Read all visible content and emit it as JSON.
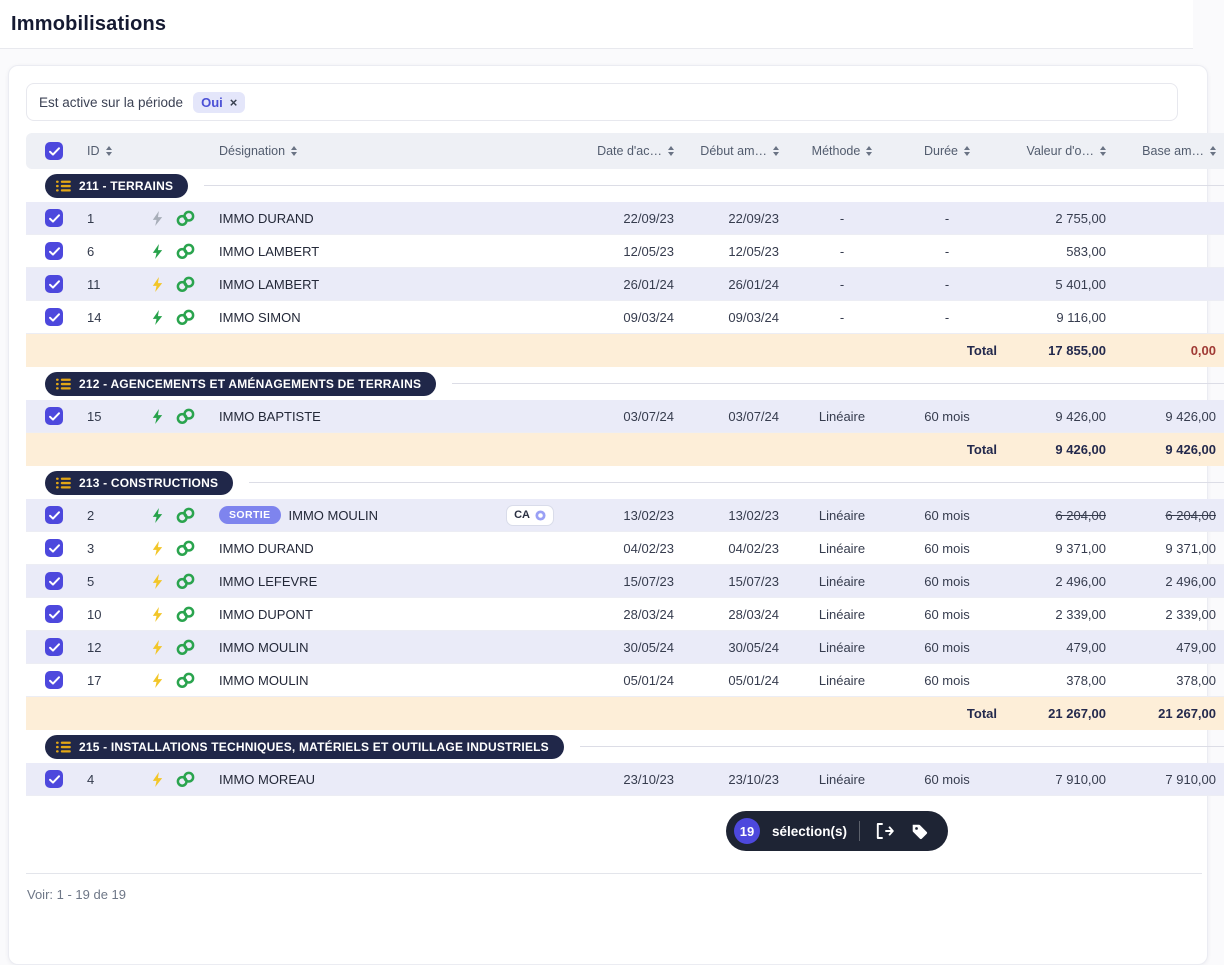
{
  "colors": {
    "accent": "#4d48dd",
    "row_alt": "#eaebf8",
    "total_bg": "#fdeed8",
    "group_pill_bg": "#202749",
    "selection_bg": "#1e2434",
    "bolt_green": "#27a24b",
    "bolt_yellow": "#f2c629",
    "bolt_gray": "#a8aeb9",
    "link_green": "#2aa44e",
    "badge_sortie_bg": "#7e84ee",
    "chip_bg": "#e4e6fa",
    "chip_text": "#4b50d6",
    "negative_total": "#a03a35",
    "list_icon": "#e3a716",
    "donut_ring": "#9aa0f5"
  },
  "header": {
    "title": "Immobilisations"
  },
  "filter": {
    "label": "Est active sur la période",
    "value": "Oui",
    "remove": "×"
  },
  "table": {
    "columns": [
      "ID",
      "Désignation",
      "Date d'ac…",
      "Début am…",
      "Méthode",
      "Durée",
      "Valeur d'o…",
      "Base am…"
    ]
  },
  "groups": [
    {
      "label": "211 - TERRAINS",
      "rows": [
        {
          "id": "1",
          "bolt": "gray",
          "linked": true,
          "badge": null,
          "name": "IMMO DURAND",
          "tag": null,
          "date_acq": "22/09/23",
          "date_debut": "22/09/23",
          "methode": "-",
          "duree": "-",
          "valeur": "2 755,00",
          "base": "",
          "struck": false
        },
        {
          "id": "6",
          "bolt": "green",
          "linked": true,
          "badge": null,
          "name": "IMMO LAMBERT",
          "tag": null,
          "date_acq": "12/05/23",
          "date_debut": "12/05/23",
          "methode": "-",
          "duree": "-",
          "valeur": "583,00",
          "base": "",
          "struck": false
        },
        {
          "id": "11",
          "bolt": "yellow",
          "linked": true,
          "badge": null,
          "name": "IMMO LAMBERT",
          "tag": null,
          "date_acq": "26/01/24",
          "date_debut": "26/01/24",
          "methode": "-",
          "duree": "-",
          "valeur": "5 401,00",
          "base": "",
          "struck": false
        },
        {
          "id": "14",
          "bolt": "green",
          "linked": true,
          "badge": null,
          "name": "IMMO SIMON",
          "tag": null,
          "date_acq": "09/03/24",
          "date_debut": "09/03/24",
          "methode": "-",
          "duree": "-",
          "valeur": "9 116,00",
          "base": "",
          "struck": false
        }
      ],
      "total": {
        "label": "Total",
        "valeur": "17 855,00",
        "base": "0,00",
        "base_negative": true
      }
    },
    {
      "label": "212 - AGENCEMENTS ET AMÉNAGEMENTS DE TERRAINS",
      "rows": [
        {
          "id": "15",
          "bolt": "green",
          "linked": true,
          "badge": null,
          "name": "IMMO BAPTISTE",
          "tag": null,
          "date_acq": "03/07/24",
          "date_debut": "03/07/24",
          "methode": "Linéaire",
          "duree": "60 mois",
          "valeur": "9 426,00",
          "base": "9 426,00",
          "struck": false
        }
      ],
      "total": {
        "label": "Total",
        "valeur": "9 426,00",
        "base": "9 426,00",
        "base_negative": false
      }
    },
    {
      "label": "213 - CONSTRUCTIONS",
      "rows": [
        {
          "id": "2",
          "bolt": "green",
          "linked": true,
          "badge": "SORTIE",
          "name": "IMMO MOULIN",
          "tag": "CA",
          "date_acq": "13/02/23",
          "date_debut": "13/02/23",
          "methode": "Linéaire",
          "duree": "60 mois",
          "valeur": "6 204,00",
          "base": "6 204,00",
          "struck": true
        },
        {
          "id": "3",
          "bolt": "yellow",
          "linked": true,
          "badge": null,
          "name": "IMMO DURAND",
          "tag": null,
          "date_acq": "04/02/23",
          "date_debut": "04/02/23",
          "methode": "Linéaire",
          "duree": "60 mois",
          "valeur": "9 371,00",
          "base": "9 371,00",
          "struck": false
        },
        {
          "id": "5",
          "bolt": "yellow",
          "linked": true,
          "badge": null,
          "name": "IMMO LEFEVRE",
          "tag": null,
          "date_acq": "15/07/23",
          "date_debut": "15/07/23",
          "methode": "Linéaire",
          "duree": "60 mois",
          "valeur": "2 496,00",
          "base": "2 496,00",
          "struck": false
        },
        {
          "id": "10",
          "bolt": "yellow",
          "linked": true,
          "badge": null,
          "name": "IMMO DUPONT",
          "tag": null,
          "date_acq": "28/03/24",
          "date_debut": "28/03/24",
          "methode": "Linéaire",
          "duree": "60 mois",
          "valeur": "2 339,00",
          "base": "2 339,00",
          "struck": false
        },
        {
          "id": "12",
          "bolt": "yellow",
          "linked": true,
          "badge": null,
          "name": "IMMO MOULIN",
          "tag": null,
          "date_acq": "30/05/24",
          "date_debut": "30/05/24",
          "methode": "Linéaire",
          "duree": "60 mois",
          "valeur": "479,00",
          "base": "479,00",
          "struck": false
        },
        {
          "id": "17",
          "bolt": "yellow",
          "linked": true,
          "badge": null,
          "name": "IMMO MOULIN",
          "tag": null,
          "date_acq": "05/01/24",
          "date_debut": "05/01/24",
          "methode": "Linéaire",
          "duree": "60 mois",
          "valeur": "378,00",
          "base": "378,00",
          "struck": false
        }
      ],
      "total": {
        "label": "Total",
        "valeur": "21 267,00",
        "base": "21 267,00",
        "base_negative": false
      }
    },
    {
      "label": "215 - INSTALLATIONS TECHNIQUES, MATÉRIELS ET OUTILLAGE INDUSTRIELS",
      "rows": [
        {
          "id": "4",
          "bolt": "yellow",
          "linked": true,
          "badge": null,
          "name": "IMMO MOREAU",
          "tag": null,
          "date_acq": "23/10/23",
          "date_debut": "23/10/23",
          "methode": "Linéaire",
          "duree": "60 mois",
          "valeur": "7 910,00",
          "base": "7 910,00",
          "struck": false
        }
      ],
      "total": null
    }
  ],
  "selection": {
    "count": "19",
    "label": "sélection(s)"
  },
  "footer": {
    "text": "Voir: 1 - 19 de 19"
  }
}
